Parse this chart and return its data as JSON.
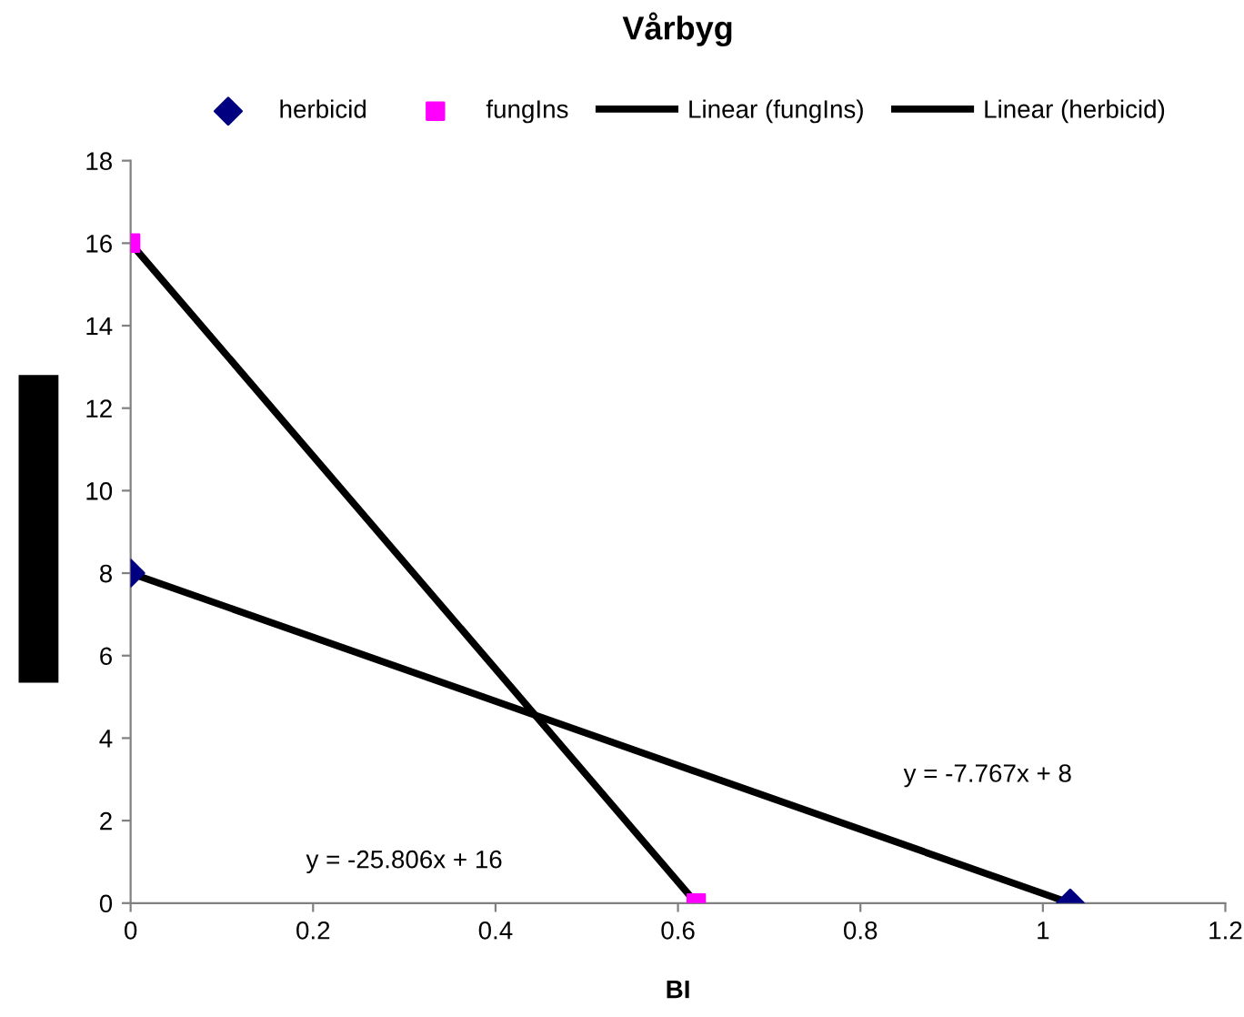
{
  "chart_data": {
    "type": "scatter",
    "title": "Vårbyg",
    "xlabel": "BI",
    "series": [
      {
        "name": "herbicid",
        "marker": "diamond",
        "color": "#000080",
        "x": [
          0,
          1.03
        ],
        "values": [
          8,
          0
        ]
      },
      {
        "name": "fungIns",
        "marker": "square",
        "color": "#ff00ff",
        "x": [
          0,
          0.62
        ],
        "values": [
          16,
          0
        ]
      },
      {
        "name": "Linear (fungIns)",
        "type": "line",
        "marker": "none",
        "line_style": "solid",
        "color": "#000000",
        "x": [
          0,
          0.62
        ],
        "values": [
          16,
          0
        ]
      },
      {
        "name": "Linear (herbicid)",
        "type": "line",
        "marker": "none",
        "line_style": "solid",
        "color": "#000000",
        "x": [
          0,
          1.03
        ],
        "values": [
          8,
          0
        ]
      }
    ],
    "annotations": [
      "y = -25.806x + 16",
      "y = -7.767x + 8"
    ],
    "xlim": [
      0,
      1.2
    ],
    "xticks": [
      0,
      0.2,
      0.4,
      0.6,
      0.8,
      1,
      1.2
    ],
    "ylim": [
      0,
      18
    ],
    "yticks": [
      0,
      2,
      4,
      6,
      8,
      10,
      12,
      14,
      16,
      18
    ],
    "grid": false,
    "legend": "top"
  }
}
